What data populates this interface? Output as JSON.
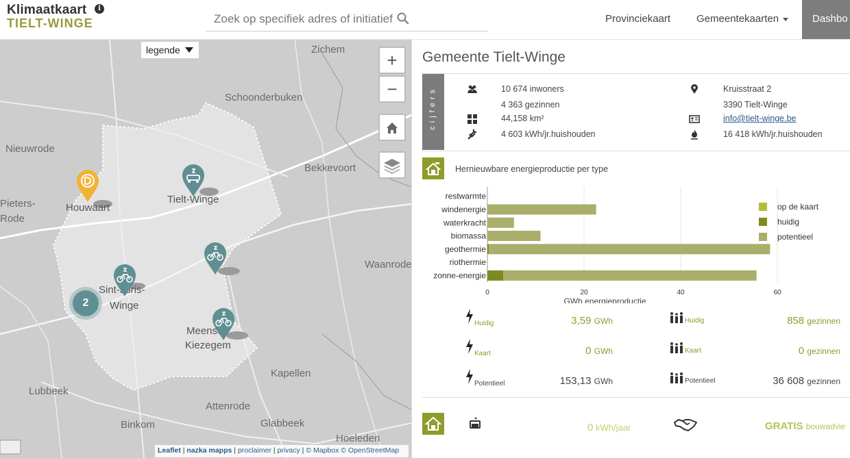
{
  "header": {
    "logo_top": "Klimaatkaart",
    "logo_bottom": "TIELT-WINGE",
    "search_placeholder": "Zoek op specifiek adres of initiatief",
    "nav": [
      "Provinciekaart",
      "Gemeentekaarten",
      "Dashbo"
    ]
  },
  "map": {
    "legend_label": "legende",
    "zoom_in": "+",
    "zoom_out": "−",
    "places": [
      "Zichem",
      "Schoonderbuken",
      "Nieuwrode",
      "Bekkevoort",
      "Pieters-",
      "Rode",
      "Houwaart",
      "Tielt-Winge",
      "Sint-Joris-",
      "Winge",
      "Waanrode",
      "Meensel-",
      "Kiezegem",
      "Kapellen",
      "Lubbeek",
      "Attenrode",
      "Glabbeek",
      "Binkom",
      "Hoeleden"
    ],
    "cluster_count": "2",
    "attribution": {
      "leaflet": "Leaflet",
      "nazka": "nazka mapps",
      "proclaimer": "proclaimer",
      "privacy": "privacy",
      "mapbox": "© Mapbox",
      "osm": "© OpenStreetMap"
    }
  },
  "panel": {
    "title": "Gemeente Tielt-Winge",
    "cijfers_label": "cijfers",
    "facts": {
      "inwoners": "10 674 inwoners",
      "gezinnen": "4 363 gezinnen",
      "oppervlakte": "44,158 km²",
      "verbruik_elek": "4 603 kWh/jr.huishouden",
      "adres1": "Kruisstraat 2",
      "adres2": "3390 Tielt-Winge",
      "email": "info@tielt-winge.be",
      "verbruik_gas": "16 418 kWh/jr.huishouden"
    },
    "chart_title": "Hernieuwbare energieproductie per type",
    "stats": {
      "huidig_label": "Huidig",
      "kaart_label": "Kaart",
      "potentieel_label": "Potentieel",
      "huidig_gwh": "3,59",
      "kaart_gwh": "0",
      "potentieel_gwh": "153,13",
      "unit_gwh": "GWh",
      "huidig_gezinnen": "858",
      "kaart_gezinnen": "0",
      "potentieel_gezinnen": "36 608",
      "unit_gezinnen": "gezinnen"
    },
    "bottom": {
      "kwh_value": "0",
      "kwh_unit": "kWh/jaar",
      "gratis": "GRATIS",
      "gratis_suffix": "bouwadvie"
    }
  },
  "colors": {
    "accent": "#8f9b2a",
    "op_de_kaart": "#b3bd3a",
    "huidig": "#7f8a1e",
    "potentieel": "#a9ae6a",
    "marker_teal": "#5f8f92",
    "marker_orange": "#f2b233"
  },
  "chart_data": {
    "type": "bar",
    "orientation": "horizontal",
    "stacked": true,
    "categories": [
      "restwarmte",
      "windenergie",
      "waterkracht",
      "biomassa",
      "geothermie",
      "riothermie",
      "zonne-energie"
    ],
    "series": [
      {
        "name": "op de kaart",
        "values": [
          0,
          0,
          0,
          0,
          0,
          0,
          0
        ]
      },
      {
        "name": "huidig",
        "values": [
          0,
          0,
          0,
          0,
          0.3,
          0,
          3.3
        ]
      },
      {
        "name": "potentieel",
        "values": [
          0,
          22.5,
          5.5,
          11,
          58.2,
          0,
          52.4
        ]
      }
    ],
    "xlabel": "GWh energieproductie",
    "ylabel": "",
    "xlim": [
      0,
      60
    ],
    "xticks": [
      0,
      20,
      40,
      60
    ],
    "grid": true,
    "legend": "right"
  }
}
